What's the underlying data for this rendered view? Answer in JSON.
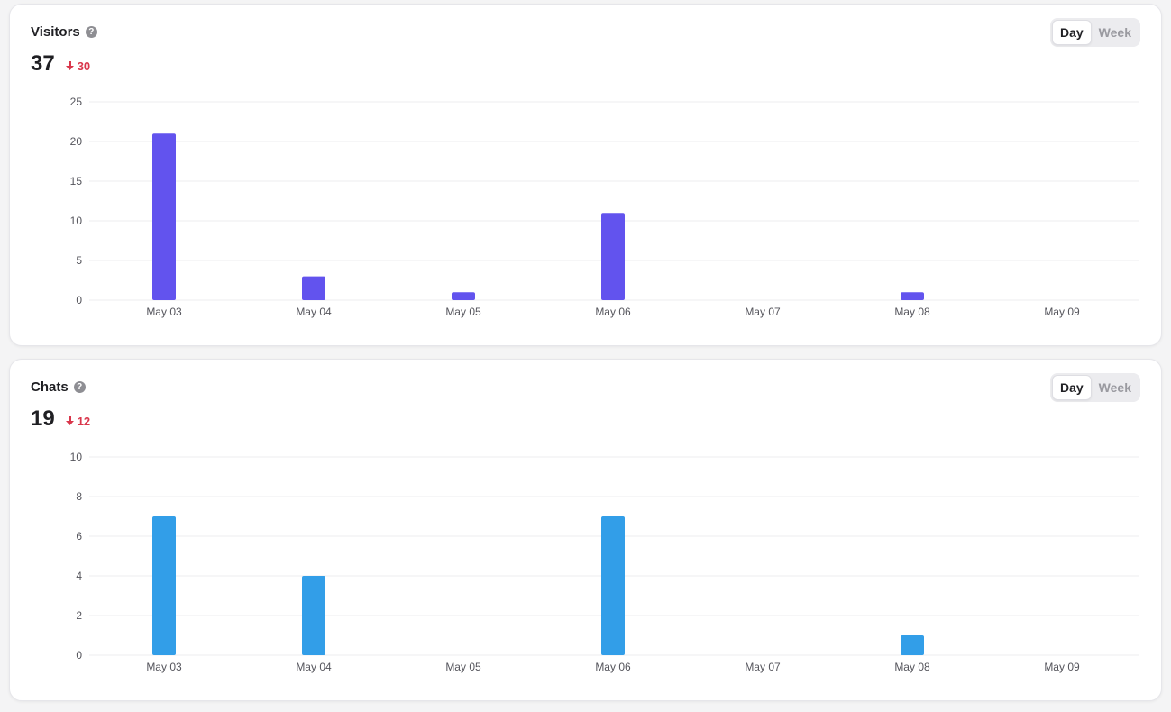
{
  "panels": [
    {
      "id": "visitors",
      "title": "Visitors",
      "help_icon": "question-circle-icon",
      "total": "37",
      "delta": "30",
      "delta_direction": "down",
      "delta_color": "#d9364b",
      "range_options": [
        "Day",
        "Week"
      ],
      "selected_range": "Day",
      "bar_color": "#6253ee"
    },
    {
      "id": "chats",
      "title": "Chats",
      "help_icon": "question-circle-icon",
      "total": "19",
      "delta": "12",
      "delta_direction": "down",
      "delta_color": "#d9364b",
      "range_options": [
        "Day",
        "Week"
      ],
      "selected_range": "Day",
      "bar_color": "#329ee8"
    }
  ],
  "chart_data": [
    {
      "type": "bar",
      "categories": [
        "May 03",
        "May 04",
        "May 05",
        "May 06",
        "May 07",
        "May 08",
        "May 09"
      ],
      "values": [
        21,
        3,
        1,
        11,
        0,
        1,
        0
      ],
      "yticks": [
        0,
        5,
        10,
        15,
        20,
        25
      ],
      "ylim": [
        0,
        25
      ],
      "grid": true,
      "color": "#6253ee"
    },
    {
      "type": "bar",
      "categories": [
        "May 03",
        "May 04",
        "May 05",
        "May 06",
        "May 07",
        "May 08",
        "May 09"
      ],
      "values": [
        7,
        4,
        0,
        7,
        0,
        1,
        0
      ],
      "yticks": [
        0,
        2,
        4,
        6,
        8,
        10
      ],
      "ylim": [
        0,
        10
      ],
      "grid": true,
      "color": "#329ee8"
    }
  ]
}
